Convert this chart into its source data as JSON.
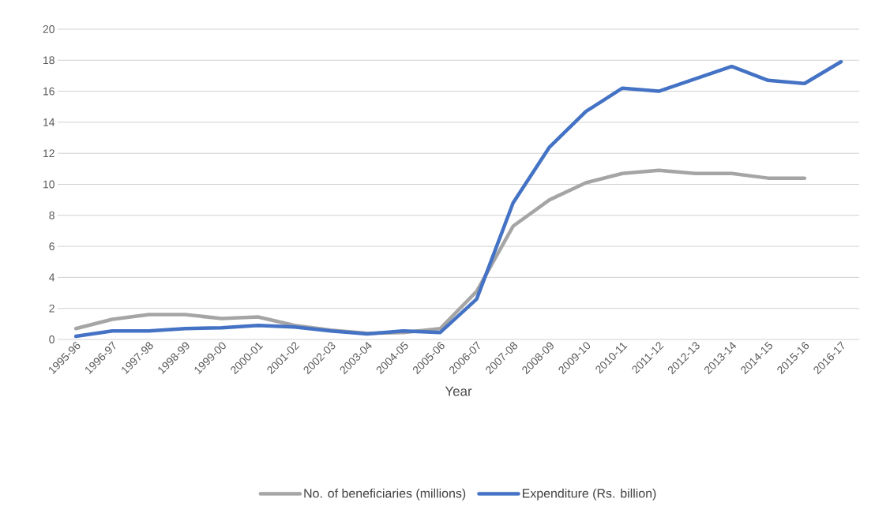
{
  "chart_data": {
    "type": "line",
    "xlabel": "Year",
    "categories": [
      "1995-96",
      "1996-97",
      "1997-98",
      "1998-99",
      "1999-00",
      "2000-01",
      "2001-02",
      "2002-03",
      "2003-04",
      "2004-05",
      "2005-06",
      "2006-07",
      "2007-08",
      "2008-09",
      "2009-10",
      "2010-11",
      "2011-12",
      "2012-13",
      "2013-14",
      "2014-15",
      "2015-16",
      "2016-17"
    ],
    "series": [
      {
        "name": "No. of beneficiaries (millions)",
        "color": "#a5a5a5",
        "values": [
          0.7,
          1.3,
          1.6,
          1.6,
          1.35,
          1.45,
          0.9,
          0.6,
          0.4,
          0.45,
          0.7,
          3.1,
          7.3,
          9.0,
          10.1,
          10.7,
          10.9,
          10.7,
          10.7,
          10.4,
          10.4,
          null
        ]
      },
      {
        "name": "Expenditure (Rs. billion)",
        "color": "#4472c4",
        "values": [
          0.2,
          0.55,
          0.55,
          0.7,
          0.75,
          0.9,
          0.8,
          0.55,
          0.35,
          0.55,
          0.45,
          2.6,
          8.8,
          12.4,
          14.7,
          16.2,
          16.0,
          16.8,
          17.6,
          16.7,
          16.5,
          17.9
        ]
      }
    ],
    "ylim": [
      0,
      20
    ],
    "yticks": [
      0,
      2,
      4,
      6,
      8,
      10,
      12,
      14,
      16,
      18,
      20
    ],
    "grid": "y",
    "legend": "bottom",
    "marker": "none",
    "line_style": "solid"
  }
}
